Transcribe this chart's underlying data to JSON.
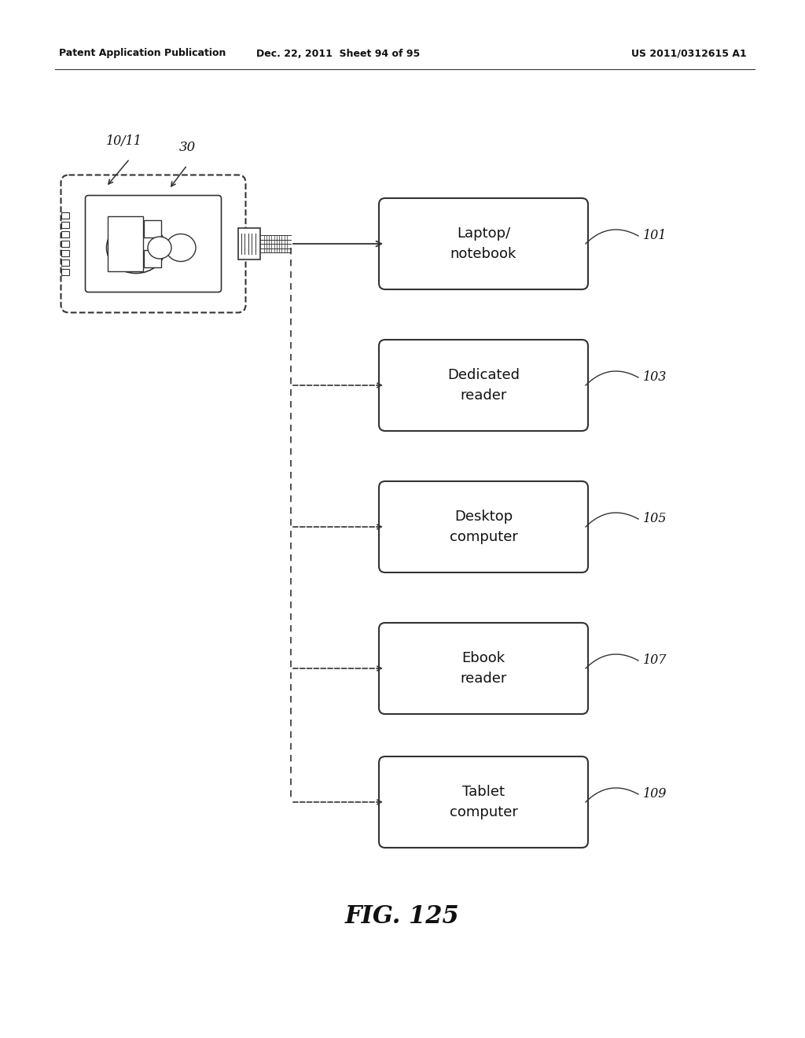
{
  "title": "FIG. 125",
  "header_left": "Patent Application Publication",
  "header_mid": "Dec. 22, 2011  Sheet 94 of 95",
  "header_right": "US 2011/0312615 A1",
  "label_device": "10/11",
  "label_30": "30",
  "boxes": [
    {
      "label": "Laptop/\nnotebook",
      "ref": "101"
    },
    {
      "label": "Dedicated\nreader",
      "ref": "103"
    },
    {
      "label": "Desktop\ncomputer",
      "ref": "105"
    },
    {
      "label": "Ebook\nreader",
      "ref": "107"
    },
    {
      "label": "Tablet\ncomputer",
      "ref": "109"
    }
  ],
  "bg_color": "#ffffff",
  "line_color": "#333333",
  "text_color": "#111111"
}
